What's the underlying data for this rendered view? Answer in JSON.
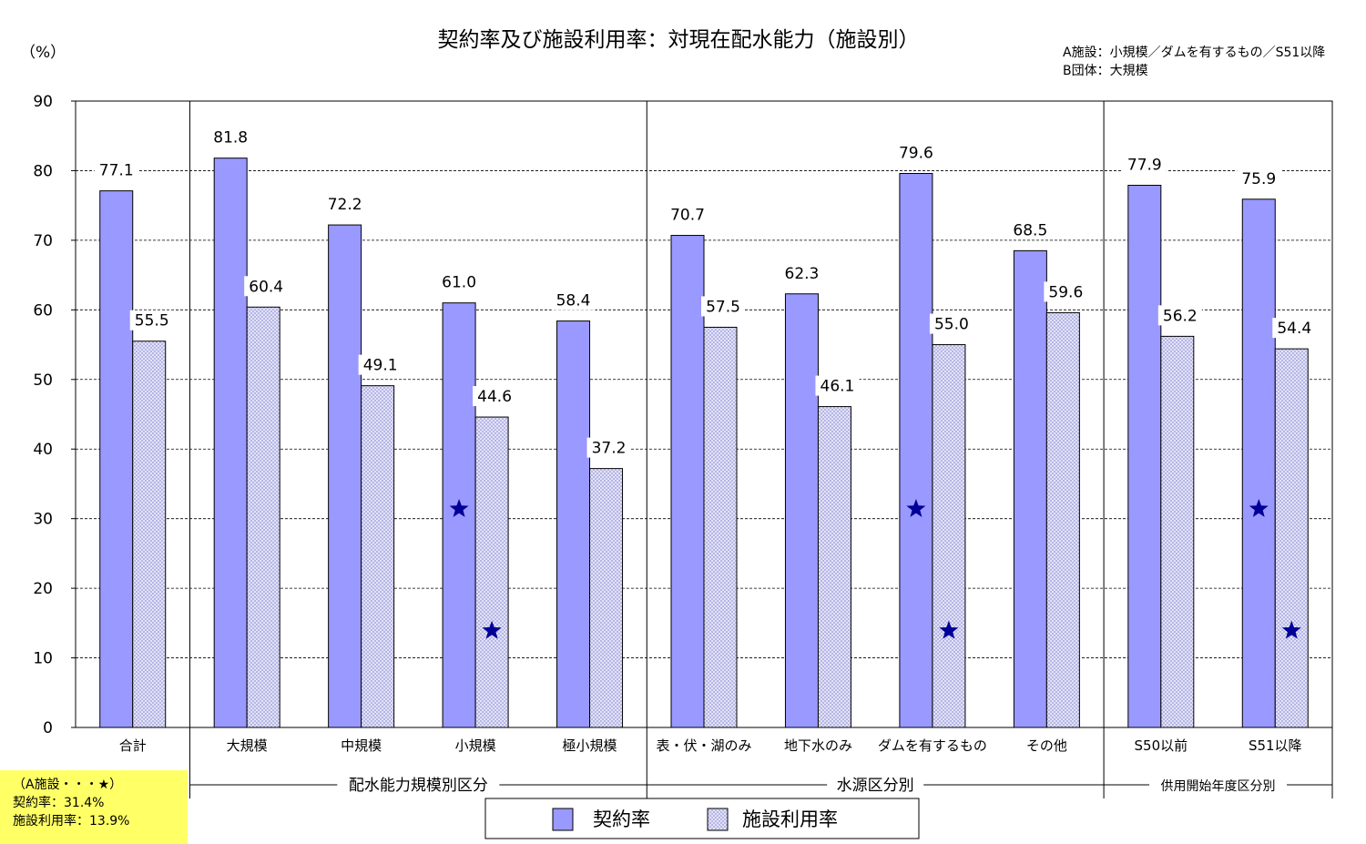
{
  "chart_data": {
    "type": "bar",
    "title": "契約率及び施設利用率：対現在配水能力（施設別）",
    "ylabel": "（%）",
    "ylim": [
      0,
      90
    ],
    "yticks": [
      0,
      10,
      20,
      30,
      40,
      50,
      60,
      70,
      80,
      90
    ],
    "grid": true,
    "categories": [
      "合計",
      "大規模",
      "中規模",
      "小規模",
      "極小規模",
      "表・伏・湖のみ",
      "地下水のみ",
      "ダムを有するもの",
      "その他",
      "S50以前",
      "S51以降"
    ],
    "series": [
      {
        "name": "契約率",
        "color": "#9999ff",
        "pattern": "solid",
        "values": [
          77.1,
          81.8,
          72.2,
          61.0,
          58.4,
          70.7,
          62.3,
          79.6,
          68.5,
          77.9,
          75.9
        ],
        "labels": [
          "77.1",
          "81.8",
          "72.2",
          "61.0",
          "58.4",
          "70.7",
          "62.3",
          "79.6",
          "68.5",
          "77.9",
          "75.9"
        ]
      },
      {
        "name": "施設利用率",
        "color": "#c8c8f0",
        "pattern": "crosshatch",
        "values": [
          55.5,
          60.4,
          49.1,
          44.6,
          37.2,
          57.5,
          46.1,
          55.0,
          59.6,
          56.2,
          54.4
        ],
        "labels": [
          "55.5",
          "60.4",
          "49.1",
          "44.6",
          "37.2",
          "57.5",
          "46.1",
          "55.0",
          "59.6",
          "56.2",
          "54.4"
        ]
      }
    ],
    "groups": [
      {
        "label": "配水能力規模別区分",
        "from": 1,
        "to": 4
      },
      {
        "label": "水源区分別",
        "from": 5,
        "to": 8
      },
      {
        "label": "供用開始年度区分別",
        "from": 9,
        "to": 10
      }
    ],
    "stars": [
      {
        "category": 3,
        "series": 0,
        "value": 31.4
      },
      {
        "category": 3,
        "series": 1,
        "value": 13.9
      },
      {
        "category": 7,
        "series": 0,
        "value": 31.4
      },
      {
        "category": 7,
        "series": 1,
        "value": 13.9
      },
      {
        "category": 10,
        "series": 0,
        "value": 31.4
      },
      {
        "category": 10,
        "series": 1,
        "value": 13.9
      }
    ],
    "star_color": "#000099",
    "note_lines": [
      "A施設：小規模／ダムを有するもの／S51以降",
      "B団体：大規模"
    ],
    "legend_position": "bottom"
  },
  "star_box": {
    "line1": "（A施設・・・★）",
    "line2": "契約率：31.4%",
    "line3": "施設利用率：13.9%",
    "color": "#ffff66"
  }
}
